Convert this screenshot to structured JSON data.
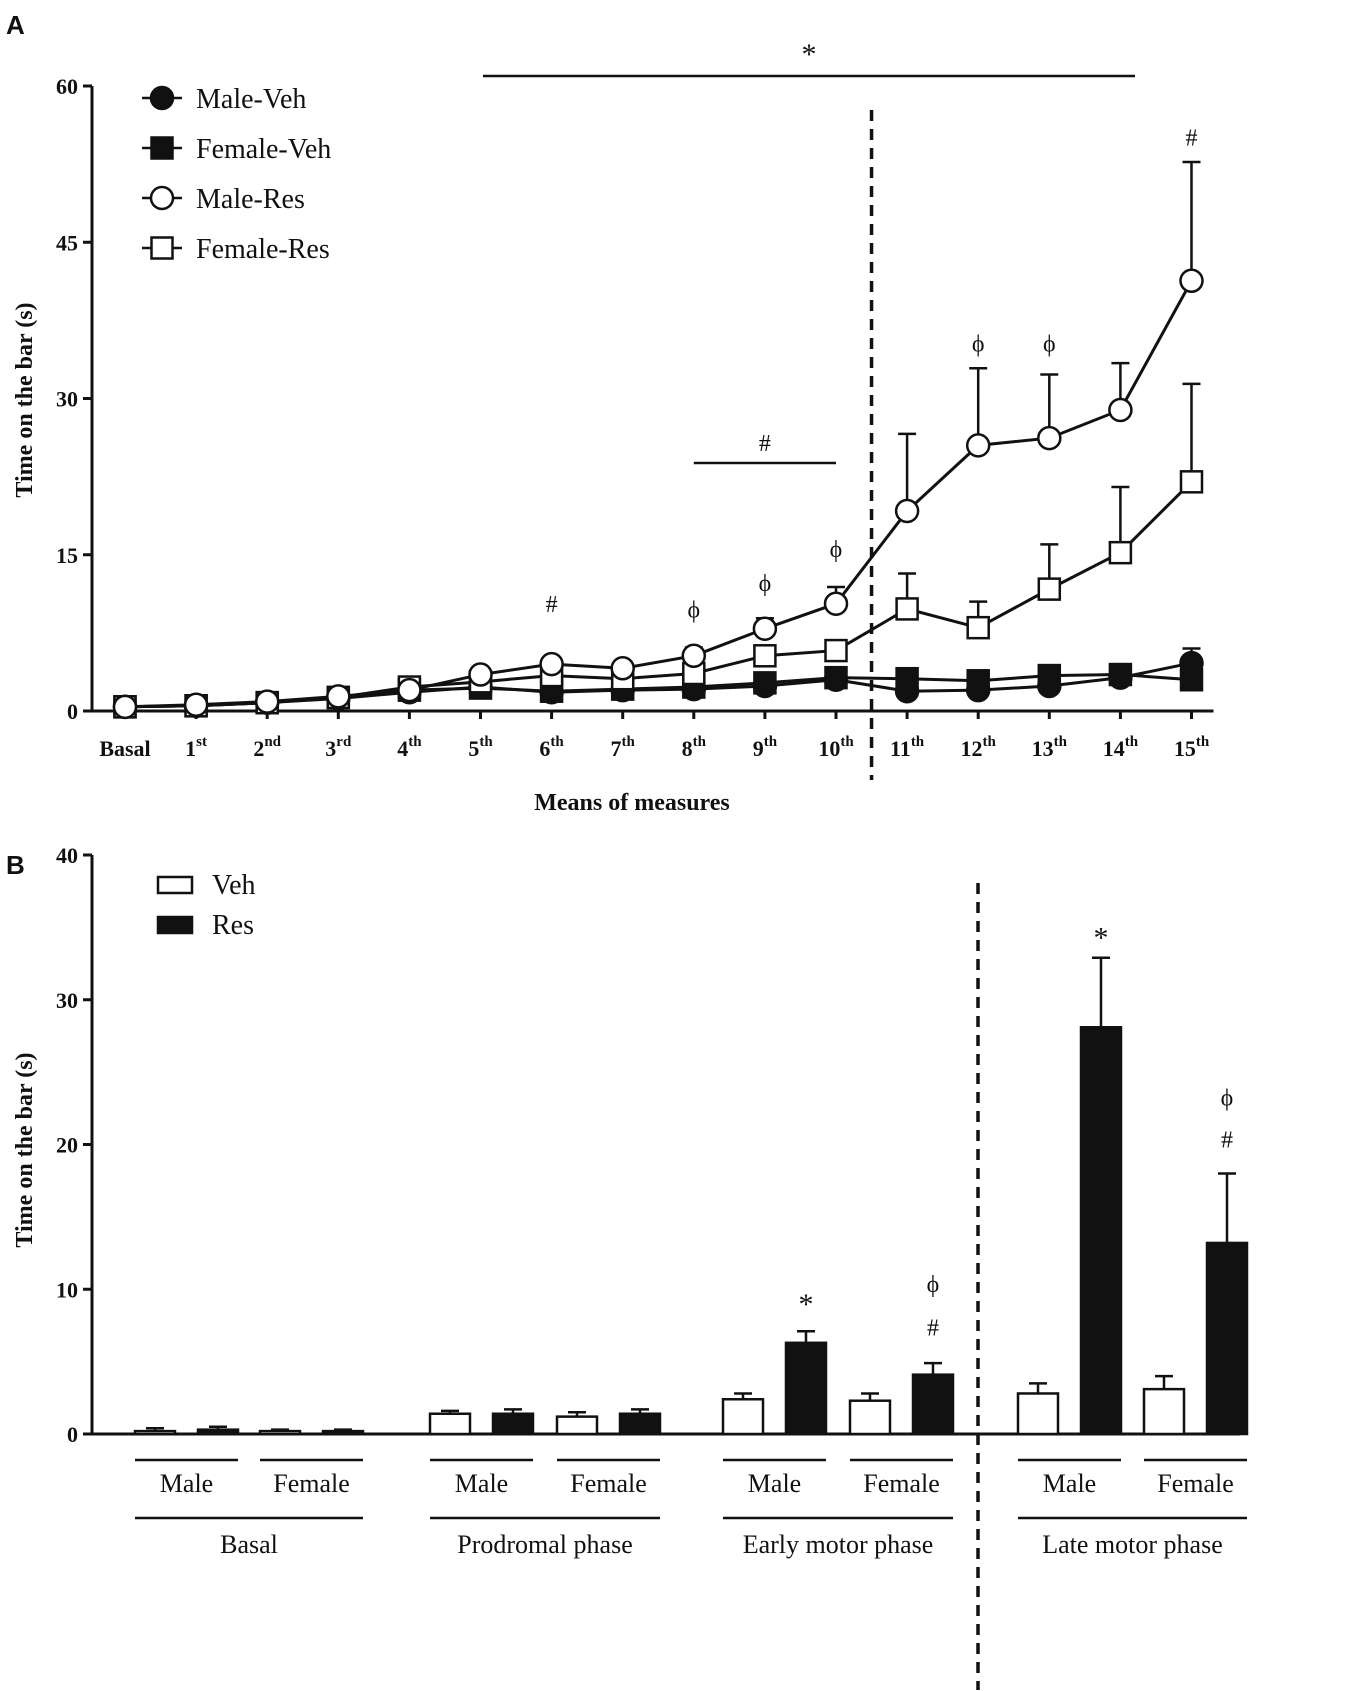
{
  "panel_a_label": "A",
  "panel_b_label": "B",
  "chart_data": [
    {
      "type": "line",
      "panel": "A",
      "xlabel": "Means of measures",
      "ylabel": "Time on the bar (s)",
      "ylim": [
        0,
        60
      ],
      "yticks": [
        "0",
        "15",
        "30",
        "45",
        "60"
      ],
      "categories": [
        {
          "main": "Basal",
          "sup": ""
        },
        {
          "main": "1",
          "sup": "st"
        },
        {
          "main": "2",
          "sup": "nd"
        },
        {
          "main": "3",
          "sup": "rd"
        },
        {
          "main": "4",
          "sup": "th"
        },
        {
          "main": "5",
          "sup": "th"
        },
        {
          "main": "6",
          "sup": "th"
        },
        {
          "main": "7",
          "sup": "th"
        },
        {
          "main": "8",
          "sup": "th"
        },
        {
          "main": "9",
          "sup": "th"
        },
        {
          "main": "10",
          "sup": "th"
        },
        {
          "main": "11",
          "sup": "th"
        },
        {
          "main": "12",
          "sup": "th"
        },
        {
          "main": "13",
          "sup": "th"
        },
        {
          "main": "14",
          "sup": "th"
        },
        {
          "main": "15",
          "sup": "th"
        }
      ],
      "series": [
        {
          "name": "Male-Veh",
          "marker": "circle",
          "fill": "#111111",
          "values": [
            0.4,
            0.5,
            0.8,
            1.2,
            1.8,
            2.3,
            1.8,
            2.0,
            2.1,
            2.4,
            3.0,
            1.9,
            2.0,
            2.4,
            3.2,
            4.6
          ],
          "err": [
            0.2,
            0.2,
            0.3,
            0.3,
            0.4,
            0.4,
            0.3,
            0.3,
            0.4,
            0.5,
            0.6,
            0.4,
            0.4,
            0.5,
            0.6,
            1.4
          ]
        },
        {
          "name": "Female-Veh",
          "marker": "square",
          "fill": "#111111",
          "values": [
            0.4,
            0.5,
            0.8,
            1.3,
            2.0,
            2.2,
            1.9,
            2.1,
            2.3,
            2.7,
            3.2,
            3.1,
            2.9,
            3.4,
            3.5,
            3.0
          ],
          "err": [
            0.2,
            0.2,
            0.3,
            0.3,
            0.4,
            0.4,
            0.3,
            0.3,
            0.4,
            0.5,
            0.6,
            0.5,
            0.4,
            0.5,
            0.6,
            0.6
          ]
        },
        {
          "name": "Male-Res",
          "marker": "circle",
          "fill": "#ffffff",
          "values": [
            0.4,
            0.6,
            0.9,
            1.4,
            2.0,
            3.5,
            4.5,
            4.1,
            5.3,
            7.9,
            10.3,
            19.2,
            25.5,
            26.2,
            28.9,
            41.3
          ],
          "err": [
            0.2,
            0.2,
            0.3,
            0.3,
            0.4,
            0.5,
            0.6,
            0.6,
            0.8,
            1.0,
            1.6,
            7.4,
            7.4,
            6.1,
            4.5,
            11.4
          ]
        },
        {
          "name": "Female-Res",
          "marker": "square",
          "fill": "#ffffff",
          "values": [
            0.4,
            0.5,
            0.8,
            1.3,
            2.3,
            2.8,
            3.4,
            3.1,
            3.6,
            5.3,
            5.8,
            9.8,
            8.0,
            11.7,
            15.2,
            22.0
          ],
          "err": [
            0.2,
            0.2,
            0.3,
            0.3,
            0.4,
            0.4,
            0.5,
            0.5,
            0.6,
            0.8,
            0.9,
            3.4,
            2.5,
            4.3,
            6.3,
            9.4
          ]
        }
      ],
      "annotations": [
        {
          "text": "*",
          "kind": "bracket",
          "from_index": 5,
          "to_index": 14
        },
        {
          "text": "#",
          "kind": "bracket",
          "from_index": 8,
          "to_index": 10
        },
        {
          "text": "#",
          "kind": "point",
          "index": 6,
          "value": 9.5
        },
        {
          "text": "ϕ",
          "kind": "point",
          "index": 8,
          "value": 9.0
        },
        {
          "text": "ϕ",
          "kind": "point",
          "index": 9,
          "value": 11.5
        },
        {
          "text": "ϕ",
          "kind": "point",
          "index": 10,
          "value": 14.8
        },
        {
          "text": "ϕ",
          "kind": "point",
          "index": 12,
          "value": 34.5
        },
        {
          "text": "ϕ",
          "kind": "point",
          "index": 13,
          "value": 34.5
        },
        {
          "text": "#",
          "kind": "point",
          "index": 15,
          "value": 54.3
        }
      ],
      "divider_after_index": 10
    },
    {
      "type": "bar",
      "panel": "B",
      "ylabel": "Time on the bar (s)",
      "ylim": [
        0,
        40
      ],
      "yticks": [
        "0",
        "10",
        "20",
        "30",
        "40"
      ],
      "legend": [
        {
          "name": "Veh",
          "fill": "#ffffff"
        },
        {
          "name": "Res",
          "fill": "#111111"
        }
      ],
      "groups": [
        "Basal",
        "Prodromal phase",
        "Early motor phase",
        "Late motor phase"
      ],
      "subgroups": [
        "Male",
        "Female"
      ],
      "series": [
        {
          "name": "Veh",
          "values": [
            0.2,
            0.2,
            1.4,
            1.2,
            2.4,
            2.3,
            2.8,
            3.1
          ],
          "err": [
            0.2,
            0.1,
            0.2,
            0.3,
            0.4,
            0.5,
            0.7,
            0.9
          ]
        },
        {
          "name": "Res",
          "values": [
            0.3,
            0.2,
            1.4,
            1.4,
            6.3,
            4.1,
            28.1,
            13.2
          ],
          "err": [
            0.2,
            0.1,
            0.3,
            0.3,
            0.8,
            0.8,
            4.8,
            4.8
          ]
        }
      ],
      "annotations": [
        {
          "text": "*",
          "bar": "Res",
          "index": 4,
          "value": 8.3
        },
        {
          "text": "#",
          "bar": "Res",
          "index": 5,
          "value": 6.8
        },
        {
          "text": "ϕ",
          "bar": "Res",
          "index": 5,
          "value": 9.8
        },
        {
          "text": "*",
          "bar": "Res",
          "index": 6,
          "value": 33.6
        },
        {
          "text": "#",
          "bar": "Res",
          "index": 7,
          "value": 19.8
        },
        {
          "text": "ϕ",
          "bar": "Res",
          "index": 7,
          "value": 22.7
        }
      ],
      "divider_after_group": 2
    }
  ]
}
